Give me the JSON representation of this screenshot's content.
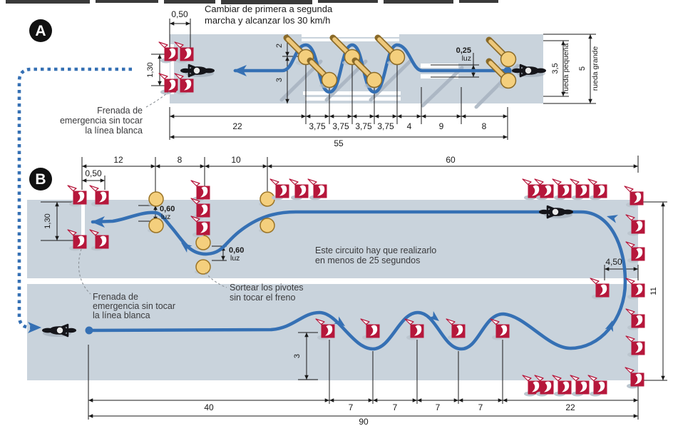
{
  "badges": {
    "a": "A",
    "b": "B"
  },
  "texts": {
    "a_instruction": [
      "Cambiar de primera a segunda",
      "marcha y alcanzar los 30 km/h"
    ],
    "brake_note": [
      "Frenada de",
      "emergencia sin tocar",
      "la línea blanca"
    ],
    "b_time_note": [
      "Este circuito hay que realizarlo",
      "en menos de 25 segundos"
    ],
    "b_pivot_note": [
      "Sortear los pivotes",
      "sin tocar el freno"
    ],
    "luz": "luz"
  },
  "dims_a": {
    "gate_width": "0,50",
    "stop_width": "1,30",
    "upper": "2",
    "lower": "3",
    "clearance": "0,25",
    "segments": [
      "22",
      "3,75",
      "3,75",
      "3,75",
      "3,75",
      "4",
      "9",
      "8"
    ],
    "total": "55",
    "small_wheel": "3,5",
    "small_wheel_label": "rueda pequeña",
    "big_wheel": "5",
    "big_wheel_label": "rueda grande"
  },
  "dims_b": {
    "top_segments": [
      "12",
      "8",
      "10",
      "60"
    ],
    "gate_width": "0,50",
    "stop_width": "1,30",
    "clearance": "0,60",
    "corner": "4,50",
    "height": "11",
    "amplitude": "3",
    "bottom_segments": [
      "40",
      "7",
      "7",
      "7",
      "7",
      "22"
    ],
    "total": "90"
  },
  "colors": {
    "track": "#c9d3dc",
    "path_blue": "#3570b4",
    "cone_red": "#b6173b",
    "pivot_yellow": "#f4cf7d"
  }
}
